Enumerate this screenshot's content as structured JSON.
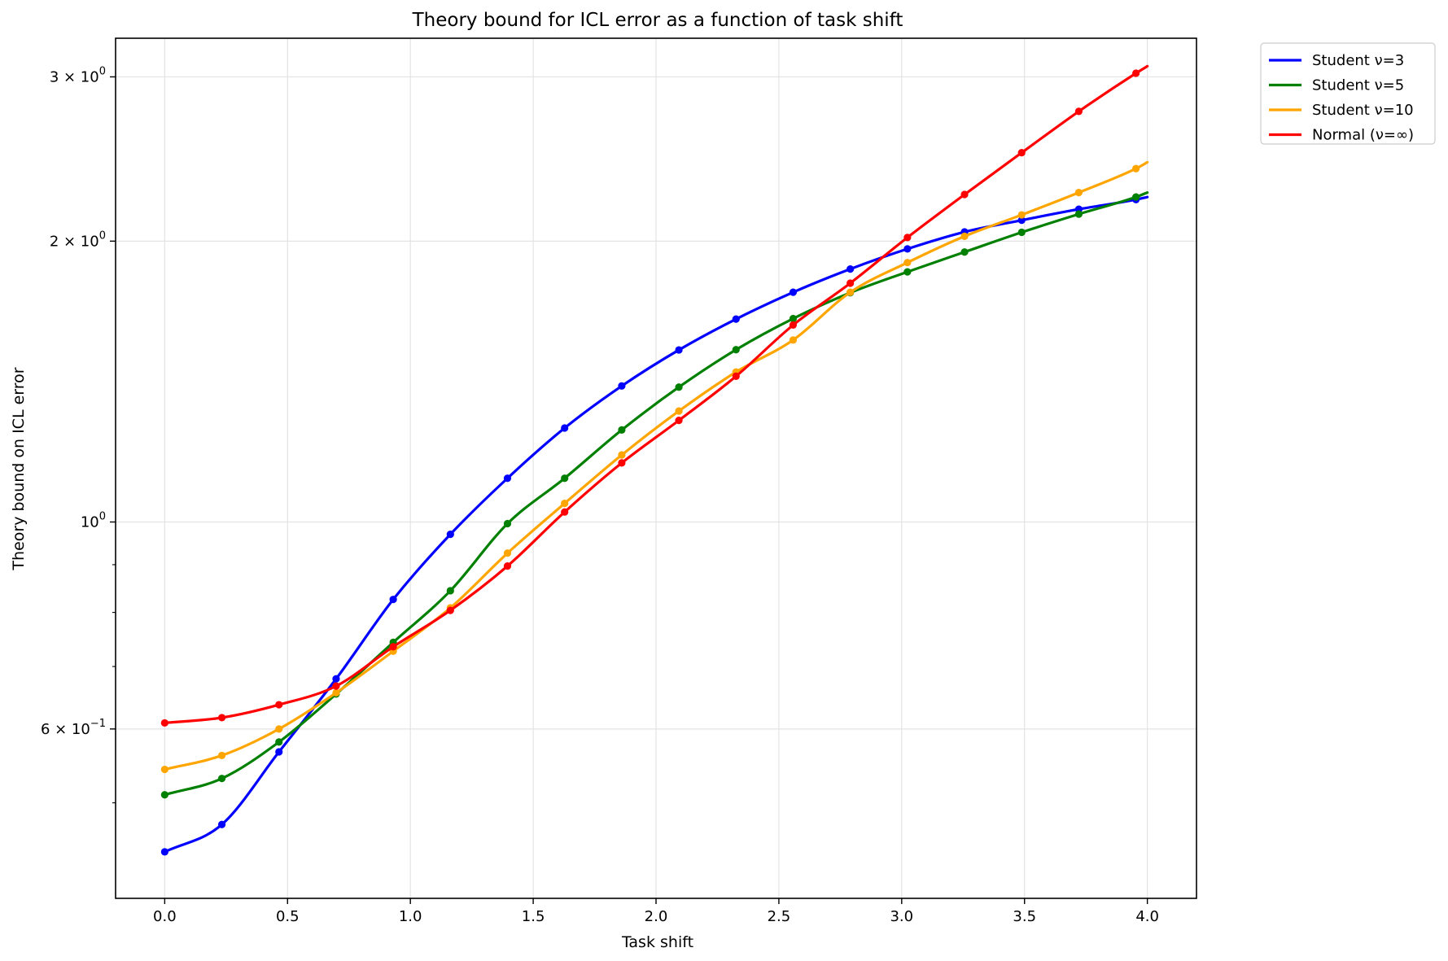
{
  "chart_data": {
    "type": "line",
    "title": "Theory bound for ICL error as a function of task shift",
    "xlabel": "Task shift",
    "ylabel": "Theory bound on ICL error",
    "xlim": [
      -0.2,
      4.2
    ],
    "ylim": [
      0.395,
      3.3
    ],
    "yscale": "log",
    "grid": true,
    "legend_position": "outside-top-right",
    "x_ticks": [
      {
        "value": 0.0,
        "label": "0.0"
      },
      {
        "value": 0.5,
        "label": "0.5"
      },
      {
        "value": 1.0,
        "label": "1.0"
      },
      {
        "value": 1.5,
        "label": "1.5"
      },
      {
        "value": 2.0,
        "label": "2.0"
      },
      {
        "value": 2.5,
        "label": "2.5"
      },
      {
        "value": 3.0,
        "label": "3.0"
      },
      {
        "value": 3.5,
        "label": "3.5"
      },
      {
        "value": 4.0,
        "label": "4.0"
      }
    ],
    "y_major_ticks": [
      {
        "value": 0.6,
        "base": "6 × 10",
        "exp": "−1"
      },
      {
        "value": 1.0,
        "base": "10",
        "exp": "0"
      },
      {
        "value": 2.0,
        "base": "2 × 10",
        "exp": "0"
      },
      {
        "value": 3.0,
        "base": "3 × 10",
        "exp": "0"
      }
    ],
    "y_minor_ticks": [
      0.5,
      0.7,
      0.8,
      0.9
    ],
    "x": [
      0.0,
      0.2326,
      0.4651,
      0.6977,
      0.9302,
      1.1628,
      1.3953,
      1.6279,
      1.8605,
      2.093,
      2.3256,
      2.5581,
      2.7907,
      3.0233,
      3.2558,
      3.4884,
      3.7209,
      3.9535
    ],
    "x_end": 4.0,
    "series": [
      {
        "name": "Student ν=3",
        "color": "#0000ff",
        "values": [
          0.443,
          0.474,
          0.567,
          0.679,
          0.826,
          0.97,
          1.114,
          1.261,
          1.399,
          1.529,
          1.65,
          1.763,
          1.867,
          1.962,
          2.046,
          2.106,
          2.164,
          2.216
        ],
        "end_value": 2.23
      },
      {
        "name": "Student ν=5",
        "color": "#008000",
        "values": [
          0.51,
          0.531,
          0.581,
          0.654,
          0.743,
          0.844,
          0.996,
          1.114,
          1.255,
          1.395,
          1.53,
          1.652,
          1.761,
          1.854,
          1.947,
          2.044,
          2.138,
          2.23
        ],
        "end_value": 2.255
      },
      {
        "name": "Student ν=10",
        "color": "#ffa500",
        "values": [
          0.543,
          0.562,
          0.6,
          0.656,
          0.727,
          0.809,
          0.926,
          1.047,
          1.18,
          1.315,
          1.448,
          1.567,
          1.763,
          1.897,
          2.024,
          2.134,
          2.255,
          2.392
        ],
        "end_value": 2.43
      },
      {
        "name": "Normal (ν=∞)",
        "color": "#ff0000",
        "values": [
          0.609,
          0.617,
          0.637,
          0.667,
          0.735,
          0.804,
          0.897,
          1.025,
          1.157,
          1.285,
          1.433,
          1.626,
          1.803,
          2.018,
          2.244,
          2.488,
          2.755,
          3.027
        ],
        "end_value": 3.08
      }
    ]
  }
}
